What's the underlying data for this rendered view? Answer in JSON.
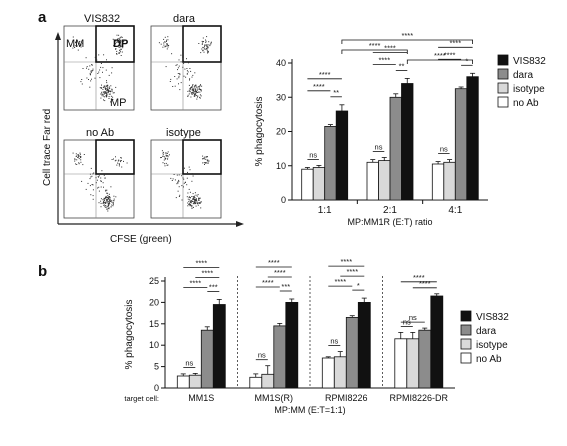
{
  "panel_a_label": "a",
  "panel_b_label": "b",
  "flow": {
    "y_axis_label": "Cell trace Far red",
    "x_axis_label": "CFSE (green)",
    "plots": [
      {
        "title": "VIS832",
        "gate_labels": {
          "mm": "MM",
          "dp": "DP",
          "mp": "MP"
        }
      },
      {
        "title": "dara"
      },
      {
        "title": "no Ab"
      },
      {
        "title": "isotype"
      }
    ]
  },
  "legend": [
    {
      "name": "VIS832",
      "color": "#111111"
    },
    {
      "name": "dara",
      "color": "#8c8c8c"
    },
    {
      "name": "isotype",
      "color": "#d9d9d9"
    },
    {
      "name": "no Ab",
      "color": "#ffffff"
    }
  ],
  "chart_data": [
    {
      "type": "bar",
      "panel": "a",
      "categories": [
        "1:1",
        "2:1",
        "4:1"
      ],
      "xlabel": "MP:MM1R (E:T) ratio",
      "ylabel": "% phagocytosis",
      "ylim": [
        0,
        40
      ],
      "yticks": [
        0,
        10,
        20,
        30,
        40
      ],
      "series": [
        {
          "name": "no Ab",
          "values": [
            9,
            11,
            10.5
          ],
          "errors": [
            0.5,
            0.8,
            0.7
          ]
        },
        {
          "name": "isotype",
          "values": [
            9.5,
            11.5,
            11
          ],
          "errors": [
            0.6,
            0.9,
            0.8
          ]
        },
        {
          "name": "dara",
          "values": [
            21.5,
            30,
            32.5
          ],
          "errors": [
            0.5,
            1.0,
            0.5
          ]
        },
        {
          "name": "VIS832",
          "values": [
            26,
            34,
            36
          ],
          "errors": [
            1.8,
            1.5,
            1.0
          ]
        }
      ],
      "significance": [
        {
          "cat": 0,
          "from": 0,
          "to": 1,
          "label": "ns"
        },
        {
          "cat": 0,
          "from": 0,
          "to": 2,
          "label": "****"
        },
        {
          "cat": 0,
          "from": 0,
          "to": 3,
          "label": "****"
        },
        {
          "cat": 0,
          "from": 2,
          "to": 3,
          "label": "**"
        },
        {
          "cat": 1,
          "from": 0,
          "to": 1,
          "label": "ns"
        },
        {
          "cat": 1,
          "from": 0,
          "to": 2,
          "label": "****"
        },
        {
          "cat": 1,
          "from": 0,
          "to": 3,
          "label": "****"
        },
        {
          "cat": 1,
          "from": 2,
          "to": 3,
          "label": "**"
        },
        {
          "cat": 2,
          "from": 0,
          "to": 1,
          "label": "ns"
        },
        {
          "cat": 2,
          "from": 0,
          "to": 2,
          "label": "****"
        },
        {
          "cat": 2,
          "from": 0,
          "to": 3,
          "label": "****"
        },
        {
          "cat": 2,
          "from": 2,
          "to": 3,
          "label": "*"
        }
      ],
      "cross_significance": [
        {
          "from_cat": 0,
          "to_cat": 2,
          "series": 3,
          "label": "****"
        },
        {
          "from_cat": 0,
          "to_cat": 1,
          "series": 3,
          "label": "****"
        },
        {
          "from_cat": 1,
          "to_cat": 2,
          "series": 3,
          "label": "****"
        }
      ]
    },
    {
      "type": "bar",
      "panel": "b",
      "categories": [
        "MM1S",
        "MM1S(R)",
        "RPMI8226",
        "RPMI8226-DR"
      ],
      "category_prefix": "target cell:",
      "xlabel": "MP:MM (E:T=1:1)",
      "ylabel": "% phagocytosis",
      "ylim": [
        0,
        25
      ],
      "yticks": [
        0,
        5,
        10,
        15,
        20,
        25
      ],
      "series": [
        {
          "name": "no Ab",
          "values": [
            2.8,
            2.5,
            7,
            11.5
          ],
          "errors": [
            0.5,
            0.8,
            0.3,
            1.5
          ]
        },
        {
          "name": "isotype",
          "values": [
            3,
            3.2,
            7.3,
            11.5
          ],
          "errors": [
            0.4,
            2.0,
            1.2,
            1.5
          ]
        },
        {
          "name": "dara",
          "values": [
            13.5,
            14.5,
            16.5,
            13.5
          ],
          "errors": [
            0.8,
            0.6,
            0.4,
            0.5
          ]
        },
        {
          "name": "VIS832",
          "values": [
            19.5,
            20,
            20,
            21.5
          ],
          "errors": [
            1.2,
            0.8,
            1.0,
            0.5
          ]
        }
      ],
      "significance": [
        {
          "cat": 0,
          "from": 0,
          "to": 1,
          "label": "ns"
        },
        {
          "cat": 0,
          "from": 0,
          "to": 2,
          "label": "****"
        },
        {
          "cat": 0,
          "from": 0,
          "to": 3,
          "label": "****"
        },
        {
          "cat": 0,
          "from": 1,
          "to": 3,
          "label": "****"
        },
        {
          "cat": 0,
          "from": 2,
          "to": 3,
          "label": "***"
        },
        {
          "cat": 1,
          "from": 0,
          "to": 1,
          "label": "ns"
        },
        {
          "cat": 1,
          "from": 0,
          "to": 2,
          "label": "****"
        },
        {
          "cat": 1,
          "from": 0,
          "to": 3,
          "label": "****"
        },
        {
          "cat": 1,
          "from": 1,
          "to": 3,
          "label": "****"
        },
        {
          "cat": 1,
          "from": 2,
          "to": 3,
          "label": "***"
        },
        {
          "cat": 2,
          "from": 0,
          "to": 1,
          "label": "ns"
        },
        {
          "cat": 2,
          "from": 0,
          "to": 2,
          "label": "****"
        },
        {
          "cat": 2,
          "from": 0,
          "to": 3,
          "label": "****"
        },
        {
          "cat": 2,
          "from": 1,
          "to": 3,
          "label": "****"
        },
        {
          "cat": 2,
          "from": 2,
          "to": 3,
          "label": "*"
        },
        {
          "cat": 3,
          "from": 0,
          "to": 1,
          "label": "ns"
        },
        {
          "cat": 3,
          "from": 0,
          "to": 2,
          "label": "ns"
        },
        {
          "cat": 3,
          "from": 0,
          "to": 3,
          "label": "****"
        },
        {
          "cat": 3,
          "from": 1,
          "to": 3,
          "label": "****"
        }
      ]
    }
  ]
}
